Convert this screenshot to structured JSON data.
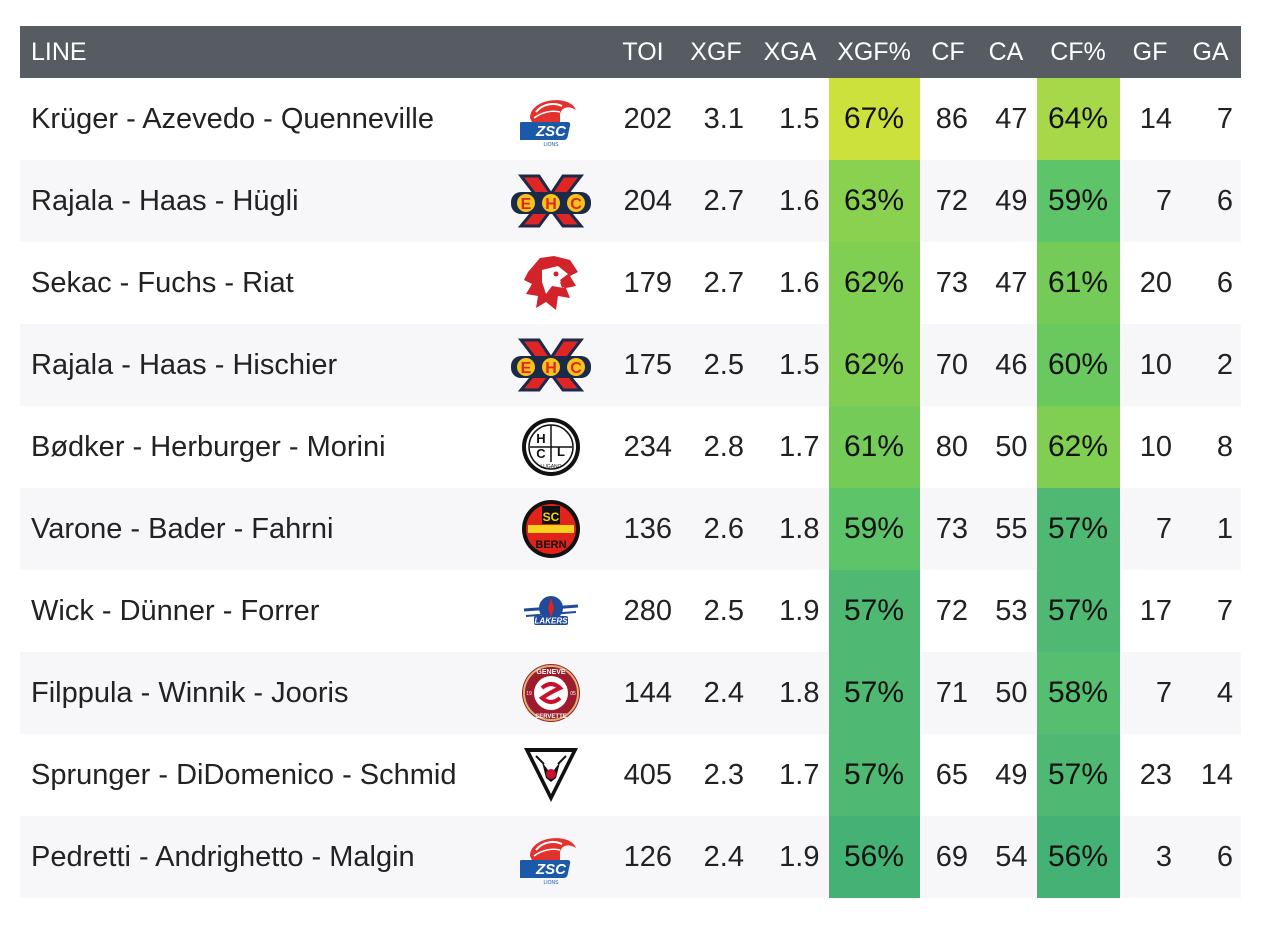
{
  "table": {
    "columns": [
      "LINE",
      "",
      "TOI",
      "XGF",
      "XGA",
      "XGF%",
      "CF",
      "CA",
      "CF%",
      "GF",
      "GA"
    ]
  },
  "chart_data": {
    "type": "table",
    "columns": [
      "LINE",
      "TOI",
      "XGF",
      "XGA",
      "XGF%",
      "CF",
      "CA",
      "CF%",
      "GF",
      "GA"
    ],
    "rows": [
      {
        "line": "Krüger - Azevedo - Quenneville",
        "team_logo": "zsc-lions-logo",
        "toi": "202",
        "xgf": "3.1",
        "xga": "1.5",
        "xgf_pct": "67%",
        "cf": "86",
        "ca": "47",
        "cf_pct": "64%",
        "gf": "14",
        "ga": "7",
        "xgf_color": "#cde13c",
        "cf_color": "#a7d84a"
      },
      {
        "line": "Rajala - Haas - Hügli",
        "team_logo": "ehc-biel-logo",
        "toi": "204",
        "xgf": "2.7",
        "xga": "1.6",
        "xgf_pct": "63%",
        "cf": "72",
        "ca": "49",
        "cf_pct": "59%",
        "gf": "7",
        "ga": "6",
        "xgf_color": "#8bd150",
        "cf_color": "#5ec46a"
      },
      {
        "line": "Sekac - Fuchs - Riat",
        "team_logo": "lausanne-hc-logo",
        "toi": "179",
        "xgf": "2.7",
        "xga": "1.6",
        "xgf_pct": "62%",
        "cf": "73",
        "ca": "47",
        "cf_pct": "61%",
        "gf": "20",
        "ga": "6",
        "xgf_color": "#80cf53",
        "cf_color": "#74cb58"
      },
      {
        "line": "Rajala - Haas - Hischier",
        "team_logo": "ehc-biel-logo",
        "toi": "175",
        "xgf": "2.5",
        "xga": "1.5",
        "xgf_pct": "62%",
        "cf": "70",
        "ca": "46",
        "cf_pct": "60%",
        "gf": "10",
        "ga": "2",
        "xgf_color": "#80cf53",
        "cf_color": "#6ac95e"
      },
      {
        "line": "Bødker - Herburger - Morini",
        "team_logo": "hc-lugano-logo",
        "toi": "234",
        "xgf": "2.8",
        "xga": "1.7",
        "xgf_pct": "61%",
        "cf": "80",
        "ca": "50",
        "cf_pct": "62%",
        "gf": "10",
        "ga": "8",
        "xgf_color": "#74cb58",
        "cf_color": "#80cf53"
      },
      {
        "line": "Varone - Bader - Fahrni",
        "team_logo": "sc-bern-logo",
        "toi": "136",
        "xgf": "2.6",
        "xga": "1.8",
        "xgf_pct": "59%",
        "cf": "73",
        "ca": "55",
        "cf_pct": "57%",
        "gf": "7",
        "ga": "1",
        "xgf_color": "#5ec46a",
        "cf_color": "#4fb872"
      },
      {
        "line": "Wick - Dünner - Forrer",
        "team_logo": "rapperswil-lakers-logo",
        "toi": "280",
        "xgf": "2.5",
        "xga": "1.9",
        "xgf_pct": "57%",
        "cf": "72",
        "ca": "53",
        "cf_pct": "57%",
        "gf": "17",
        "ga": "7",
        "xgf_color": "#4fb872",
        "cf_color": "#4fb872"
      },
      {
        "line": "Filppula - Winnik - Jooris",
        "team_logo": "geneve-servette-logo",
        "toi": "144",
        "xgf": "2.4",
        "xga": "1.8",
        "xgf_pct": "57%",
        "cf": "71",
        "ca": "50",
        "cf_pct": "58%",
        "gf": "7",
        "ga": "4",
        "xgf_color": "#4fb872",
        "cf_color": "#55be6f"
      },
      {
        "line": "Sprunger - DiDomenico - Schmid",
        "team_logo": "hc-fribourg-gotteron-logo",
        "toi": "405",
        "xgf": "2.3",
        "xga": "1.7",
        "xgf_pct": "57%",
        "cf": "65",
        "ca": "49",
        "cf_pct": "57%",
        "gf": "23",
        "ga": "14",
        "xgf_color": "#4fb872",
        "cf_color": "#4fb872"
      },
      {
        "line": "Pedretti - Andrighetto - Malgin",
        "team_logo": "zsc-lions-logo",
        "toi": "126",
        "xgf": "2.4",
        "xga": "1.9",
        "xgf_pct": "56%",
        "cf": "69",
        "ca": "54",
        "cf_pct": "56%",
        "gf": "3",
        "ga": "6",
        "xgf_color": "#45b275",
        "cf_color": "#45b275"
      }
    ]
  }
}
